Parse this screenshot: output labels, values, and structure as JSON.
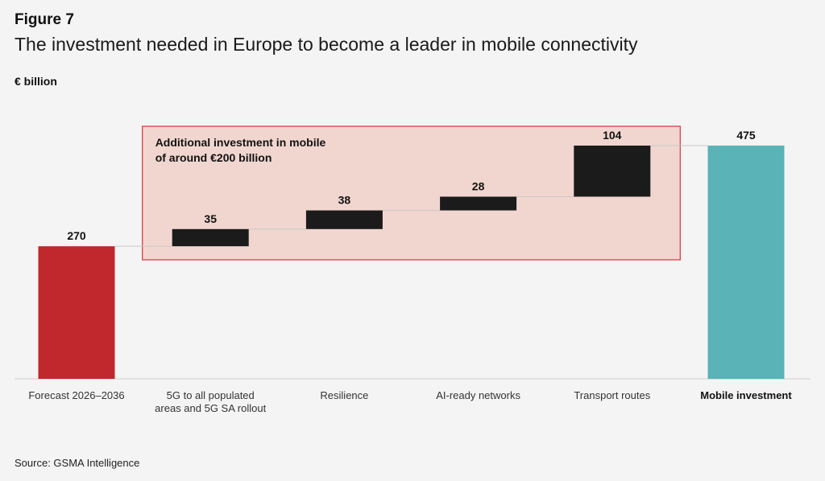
{
  "figure_label": "Figure 7",
  "title": "The investment needed in Europe to become a leader in mobile connectivity",
  "unit_label": "€ billion",
  "source": "Source: GSMA Intelligence",
  "colors": {
    "start": "#c0282d",
    "increment": "#1b1b1b",
    "total": "#5ab3b6",
    "highlight_fill": "#f1d6cf",
    "highlight_border": "#d9333b"
  },
  "chart_data": {
    "type": "bar",
    "subtype": "waterfall",
    "categories": [
      [
        "Forecast 2026–2036"
      ],
      [
        "5G to all populated",
        "areas and 5G SA rollout"
      ],
      [
        "Resilience"
      ],
      [
        "AI-ready networks"
      ],
      [
        "Transport routes"
      ],
      [
        "Mobile investment"
      ]
    ],
    "values": [
      270,
      35,
      38,
      28,
      104,
      475
    ],
    "value_labels": [
      "270",
      "35",
      "38",
      "28",
      "104",
      "475"
    ],
    "kinds": [
      "start",
      "increment",
      "increment",
      "increment",
      "increment",
      "total"
    ],
    "bold_category": [
      false,
      false,
      false,
      false,
      false,
      true
    ],
    "annotation": {
      "lines": [
        "Additional investment in mobile",
        "of around €200 billion"
      ],
      "covers_categories": [
        1,
        4
      ]
    },
    "ylim": [
      0,
      475
    ],
    "grid": false,
    "legend": "none"
  }
}
